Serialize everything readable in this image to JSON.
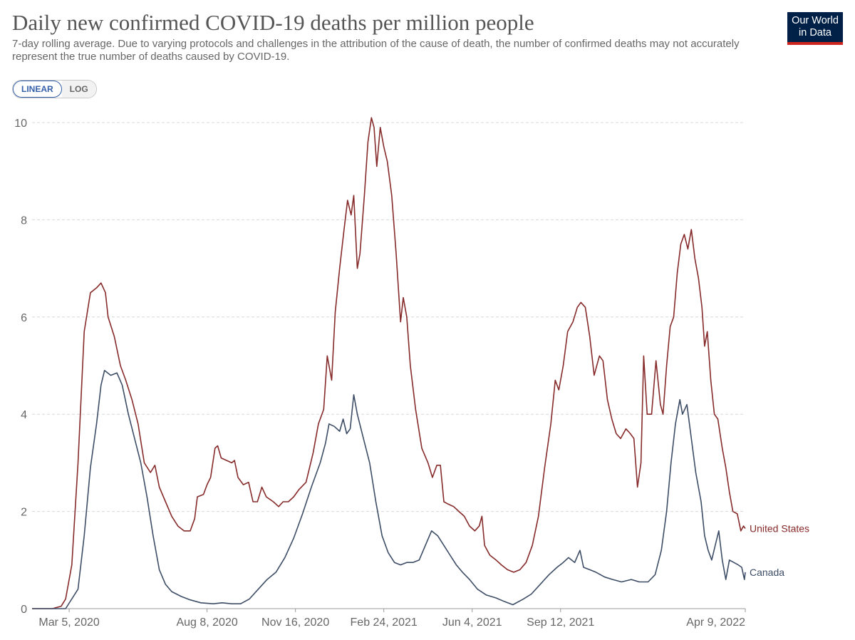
{
  "header": {
    "title": "Daily new confirmed COVID-19 deaths per million people",
    "subtitle": "7-day rolling average. Due to varying protocols and challenges in the attribution of the cause of death, the number of confirmed deaths may not accurately represent the true number of deaths caused by COVID-19."
  },
  "logo": {
    "line1": "Our World",
    "line2": "in Data"
  },
  "scale_toggle": {
    "linear_label": "LINEAR",
    "log_label": "LOG",
    "selected": "LINEAR"
  },
  "colors": {
    "united_states": "#862a2a",
    "canada": "#3d4d66",
    "grid": "#d8d8d8",
    "logo_bg": "#002147",
    "logo_accent": "#ce261e"
  },
  "chart_data": {
    "type": "line",
    "title": "Daily new confirmed COVID-19 deaths per million people",
    "xlabel": "",
    "ylabel": "",
    "ylim": [
      0,
      10
    ],
    "xlim": [
      "2020-01-23",
      "2022-04-09"
    ],
    "y_ticks": [
      "0",
      "2",
      "4",
      "6",
      "8",
      "10"
    ],
    "x_ticks": [
      {
        "date": "2020-03-05",
        "label": "Mar 5, 2020"
      },
      {
        "date": "2020-08-08",
        "label": "Aug 8, 2020"
      },
      {
        "date": "2020-11-16",
        "label": "Nov 16, 2020"
      },
      {
        "date": "2021-02-24",
        "label": "Feb 24, 2021"
      },
      {
        "date": "2021-06-04",
        "label": "Jun 4, 2021"
      },
      {
        "date": "2021-09-12",
        "label": "Sep 12, 2021"
      },
      {
        "date": "2022-04-09",
        "label": "Apr 9, 2022"
      }
    ],
    "grid": true,
    "series": [
      {
        "name": "United States",
        "points": [
          [
            "2020-01-23",
            0
          ],
          [
            "2020-02-15",
            0
          ],
          [
            "2020-02-25",
            0.05
          ],
          [
            "2020-03-01",
            0.2
          ],
          [
            "2020-03-08",
            0.9
          ],
          [
            "2020-03-15",
            3.0
          ],
          [
            "2020-03-22",
            5.7
          ],
          [
            "2020-03-29",
            6.5
          ],
          [
            "2020-04-05",
            6.6
          ],
          [
            "2020-04-10",
            6.7
          ],
          [
            "2020-04-15",
            6.5
          ],
          [
            "2020-04-18",
            6.0
          ],
          [
            "2020-04-25",
            5.6
          ],
          [
            "2020-05-02",
            5.0
          ],
          [
            "2020-05-08",
            4.7
          ],
          [
            "2020-05-15",
            4.3
          ],
          [
            "2020-05-22",
            3.8
          ],
          [
            "2020-05-29",
            3.0
          ],
          [
            "2020-06-05",
            2.8
          ],
          [
            "2020-06-10",
            2.95
          ],
          [
            "2020-06-15",
            2.5
          ],
          [
            "2020-06-22",
            2.2
          ],
          [
            "2020-06-29",
            1.9
          ],
          [
            "2020-07-06",
            1.7
          ],
          [
            "2020-07-13",
            1.6
          ],
          [
            "2020-07-20",
            1.6
          ],
          [
            "2020-07-25",
            1.85
          ],
          [
            "2020-07-28",
            2.3
          ],
          [
            "2020-08-04",
            2.35
          ],
          [
            "2020-08-08",
            2.55
          ],
          [
            "2020-08-12",
            2.7
          ],
          [
            "2020-08-17",
            3.3
          ],
          [
            "2020-08-20",
            3.35
          ],
          [
            "2020-08-24",
            3.1
          ],
          [
            "2020-08-30",
            3.05
          ],
          [
            "2020-09-05",
            3.0
          ],
          [
            "2020-09-08",
            3.05
          ],
          [
            "2020-09-12",
            2.7
          ],
          [
            "2020-09-18",
            2.55
          ],
          [
            "2020-09-24",
            2.6
          ],
          [
            "2020-09-29",
            2.2
          ],
          [
            "2020-10-04",
            2.2
          ],
          [
            "2020-10-09",
            2.5
          ],
          [
            "2020-10-14",
            2.3
          ],
          [
            "2020-10-22",
            2.2
          ],
          [
            "2020-10-28",
            2.1
          ],
          [
            "2020-11-02",
            2.2
          ],
          [
            "2020-11-08",
            2.2
          ],
          [
            "2020-11-14",
            2.3
          ],
          [
            "2020-11-20",
            2.45
          ],
          [
            "2020-11-28",
            2.6
          ],
          [
            "2020-12-06",
            3.2
          ],
          [
            "2020-12-12",
            3.8
          ],
          [
            "2020-12-18",
            4.1
          ],
          [
            "2020-12-22",
            5.2
          ],
          [
            "2020-12-27",
            4.7
          ],
          [
            "2020-12-31",
            6.1
          ],
          [
            "2021-01-05",
            7.0
          ],
          [
            "2021-01-10",
            7.8
          ],
          [
            "2021-01-14",
            8.4
          ],
          [
            "2021-01-18",
            8.1
          ],
          [
            "2021-01-21",
            8.5
          ],
          [
            "2021-01-25",
            7.0
          ],
          [
            "2021-01-28",
            7.3
          ],
          [
            "2021-02-02",
            8.5
          ],
          [
            "2021-02-06",
            9.6
          ],
          [
            "2021-02-10",
            10.1
          ],
          [
            "2021-02-13",
            9.9
          ],
          [
            "2021-02-16",
            9.1
          ],
          [
            "2021-02-20",
            9.9
          ],
          [
            "2021-02-24",
            9.5
          ],
          [
            "2021-02-28",
            9.2
          ],
          [
            "2021-03-05",
            8.5
          ],
          [
            "2021-03-10",
            7.3
          ],
          [
            "2021-03-15",
            5.9
          ],
          [
            "2021-03-18",
            6.4
          ],
          [
            "2021-03-22",
            6.0
          ],
          [
            "2021-03-26",
            5.0
          ],
          [
            "2021-04-01",
            4.1
          ],
          [
            "2021-04-08",
            3.3
          ],
          [
            "2021-04-15",
            3.0
          ],
          [
            "2021-04-20",
            2.7
          ],
          [
            "2021-04-25",
            2.95
          ],
          [
            "2021-04-29",
            2.95
          ],
          [
            "2021-05-03",
            2.2
          ],
          [
            "2021-05-08",
            2.15
          ],
          [
            "2021-05-14",
            2.1
          ],
          [
            "2021-05-20",
            2.0
          ],
          [
            "2021-05-26",
            1.9
          ],
          [
            "2021-06-01",
            1.7
          ],
          [
            "2021-06-07",
            1.6
          ],
          [
            "2021-06-12",
            1.7
          ],
          [
            "2021-06-15",
            1.9
          ],
          [
            "2021-06-18",
            1.3
          ],
          [
            "2021-06-24",
            1.1
          ],
          [
            "2021-07-01",
            1.0
          ],
          [
            "2021-07-07",
            0.9
          ],
          [
            "2021-07-14",
            0.8
          ],
          [
            "2021-07-21",
            0.75
          ],
          [
            "2021-07-28",
            0.8
          ],
          [
            "2021-08-04",
            0.95
          ],
          [
            "2021-08-11",
            1.3
          ],
          [
            "2021-08-18",
            1.9
          ],
          [
            "2021-08-25",
            2.9
          ],
          [
            "2021-09-01",
            3.8
          ],
          [
            "2021-09-06",
            4.7
          ],
          [
            "2021-09-10",
            4.5
          ],
          [
            "2021-09-15",
            5.0
          ],
          [
            "2021-09-20",
            5.7
          ],
          [
            "2021-09-26",
            5.9
          ],
          [
            "2021-10-01",
            6.2
          ],
          [
            "2021-10-05",
            6.3
          ],
          [
            "2021-10-10",
            6.2
          ],
          [
            "2021-10-15",
            5.6
          ],
          [
            "2021-10-20",
            4.8
          ],
          [
            "2021-10-26",
            5.2
          ],
          [
            "2021-10-30",
            5.1
          ],
          [
            "2021-11-04",
            4.3
          ],
          [
            "2021-11-09",
            3.9
          ],
          [
            "2021-11-14",
            3.6
          ],
          [
            "2021-11-19",
            3.5
          ],
          [
            "2021-11-25",
            3.7
          ],
          [
            "2021-11-30",
            3.6
          ],
          [
            "2021-12-04",
            3.5
          ],
          [
            "2021-12-08",
            2.5
          ],
          [
            "2021-12-12",
            3.0
          ],
          [
            "2021-12-15",
            5.2
          ],
          [
            "2021-12-19",
            4.0
          ],
          [
            "2021-12-24",
            4.0
          ],
          [
            "2021-12-29",
            5.1
          ],
          [
            "2022-01-03",
            4.2
          ],
          [
            "2022-01-06",
            4.0
          ],
          [
            "2022-01-10",
            5.0
          ],
          [
            "2022-01-14",
            5.8
          ],
          [
            "2022-01-18",
            6.0
          ],
          [
            "2022-01-22",
            6.9
          ],
          [
            "2022-01-26",
            7.5
          ],
          [
            "2022-01-30",
            7.7
          ],
          [
            "2022-02-03",
            7.4
          ],
          [
            "2022-02-07",
            7.8
          ],
          [
            "2022-02-11",
            7.2
          ],
          [
            "2022-02-15",
            6.8
          ],
          [
            "2022-02-19",
            6.2
          ],
          [
            "2022-02-22",
            5.4
          ],
          [
            "2022-02-25",
            5.7
          ],
          [
            "2022-03-01",
            4.7
          ],
          [
            "2022-03-05",
            4.0
          ],
          [
            "2022-03-09",
            3.9
          ],
          [
            "2022-03-14",
            3.3
          ],
          [
            "2022-03-18",
            2.9
          ],
          [
            "2022-03-22",
            2.4
          ],
          [
            "2022-03-26",
            2.0
          ],
          [
            "2022-03-31",
            1.95
          ],
          [
            "2022-04-04",
            1.6
          ],
          [
            "2022-04-07",
            1.7
          ],
          [
            "2022-04-09",
            1.65
          ]
        ]
      },
      {
        "name": "Canada",
        "points": [
          [
            "2020-01-23",
            0
          ],
          [
            "2020-02-20",
            0
          ],
          [
            "2020-03-01",
            0
          ],
          [
            "2020-03-15",
            0.4
          ],
          [
            "2020-03-22",
            1.5
          ],
          [
            "2020-03-29",
            2.9
          ],
          [
            "2020-04-05",
            3.8
          ],
          [
            "2020-04-10",
            4.6
          ],
          [
            "2020-04-14",
            4.9
          ],
          [
            "2020-04-21",
            4.8
          ],
          [
            "2020-04-28",
            4.85
          ],
          [
            "2020-05-04",
            4.6
          ],
          [
            "2020-05-11",
            4.0
          ],
          [
            "2020-05-18",
            3.5
          ],
          [
            "2020-05-25",
            3.0
          ],
          [
            "2020-06-01",
            2.3
          ],
          [
            "2020-06-08",
            1.5
          ],
          [
            "2020-06-15",
            0.8
          ],
          [
            "2020-06-22",
            0.5
          ],
          [
            "2020-06-29",
            0.35
          ],
          [
            "2020-07-10",
            0.25
          ],
          [
            "2020-07-20",
            0.18
          ],
          [
            "2020-08-01",
            0.12
          ],
          [
            "2020-08-15",
            0.1
          ],
          [
            "2020-08-25",
            0.12
          ],
          [
            "2020-09-05",
            0.1
          ],
          [
            "2020-09-15",
            0.1
          ],
          [
            "2020-09-25",
            0.2
          ],
          [
            "2020-10-05",
            0.4
          ],
          [
            "2020-10-15",
            0.6
          ],
          [
            "2020-10-25",
            0.75
          ],
          [
            "2020-11-04",
            1.05
          ],
          [
            "2020-11-14",
            1.45
          ],
          [
            "2020-11-24",
            1.95
          ],
          [
            "2020-12-04",
            2.5
          ],
          [
            "2020-12-14",
            3.0
          ],
          [
            "2020-12-20",
            3.4
          ],
          [
            "2020-12-24",
            3.8
          ],
          [
            "2020-12-30",
            3.75
          ],
          [
            "2021-01-05",
            3.65
          ],
          [
            "2021-01-09",
            3.9
          ],
          [
            "2021-01-13",
            3.6
          ],
          [
            "2021-01-17",
            3.7
          ],
          [
            "2021-01-21",
            4.4
          ],
          [
            "2021-01-25",
            4.0
          ],
          [
            "2021-02-01",
            3.5
          ],
          [
            "2021-02-08",
            3.0
          ],
          [
            "2021-02-15",
            2.2
          ],
          [
            "2021-02-22",
            1.5
          ],
          [
            "2021-03-01",
            1.15
          ],
          [
            "2021-03-08",
            0.95
          ],
          [
            "2021-03-15",
            0.9
          ],
          [
            "2021-03-22",
            0.95
          ],
          [
            "2021-03-29",
            0.95
          ],
          [
            "2021-04-05",
            1.0
          ],
          [
            "2021-04-12",
            1.3
          ],
          [
            "2021-04-19",
            1.6
          ],
          [
            "2021-04-26",
            1.5
          ],
          [
            "2021-05-03",
            1.3
          ],
          [
            "2021-05-10",
            1.1
          ],
          [
            "2021-05-17",
            0.9
          ],
          [
            "2021-05-24",
            0.75
          ],
          [
            "2021-06-01",
            0.6
          ],
          [
            "2021-06-10",
            0.4
          ],
          [
            "2021-06-20",
            0.28
          ],
          [
            "2021-07-01",
            0.22
          ],
          [
            "2021-07-10",
            0.15
          ],
          [
            "2021-07-20",
            0.08
          ],
          [
            "2021-08-01",
            0.2
          ],
          [
            "2021-08-10",
            0.3
          ],
          [
            "2021-08-20",
            0.5
          ],
          [
            "2021-08-30",
            0.7
          ],
          [
            "2021-09-08",
            0.85
          ],
          [
            "2021-09-15",
            0.95
          ],
          [
            "2021-09-21",
            1.05
          ],
          [
            "2021-09-28",
            0.95
          ],
          [
            "2021-10-04",
            1.2
          ],
          [
            "2021-10-08",
            0.85
          ],
          [
            "2021-10-15",
            0.8
          ],
          [
            "2021-10-22",
            0.75
          ],
          [
            "2021-11-01",
            0.65
          ],
          [
            "2021-11-10",
            0.6
          ],
          [
            "2021-11-20",
            0.55
          ],
          [
            "2021-12-01",
            0.6
          ],
          [
            "2021-12-10",
            0.55
          ],
          [
            "2021-12-20",
            0.55
          ],
          [
            "2021-12-28",
            0.7
          ],
          [
            "2022-01-04",
            1.2
          ],
          [
            "2022-01-10",
            2.0
          ],
          [
            "2022-01-15",
            3.0
          ],
          [
            "2022-01-20",
            3.8
          ],
          [
            "2022-01-25",
            4.3
          ],
          [
            "2022-01-28",
            4.0
          ],
          [
            "2022-02-02",
            4.2
          ],
          [
            "2022-02-07",
            3.5
          ],
          [
            "2022-02-12",
            2.8
          ],
          [
            "2022-02-18",
            2.2
          ],
          [
            "2022-02-22",
            1.5
          ],
          [
            "2022-02-26",
            1.2
          ],
          [
            "2022-03-02",
            1.0
          ],
          [
            "2022-03-06",
            1.3
          ],
          [
            "2022-03-10",
            1.6
          ],
          [
            "2022-03-14",
            1.0
          ],
          [
            "2022-03-18",
            0.6
          ],
          [
            "2022-03-22",
            1.0
          ],
          [
            "2022-03-27",
            0.95
          ],
          [
            "2022-04-01",
            0.9
          ],
          [
            "2022-04-05",
            0.85
          ],
          [
            "2022-04-08",
            0.6
          ],
          [
            "2022-04-09",
            0.75
          ]
        ]
      }
    ]
  }
}
